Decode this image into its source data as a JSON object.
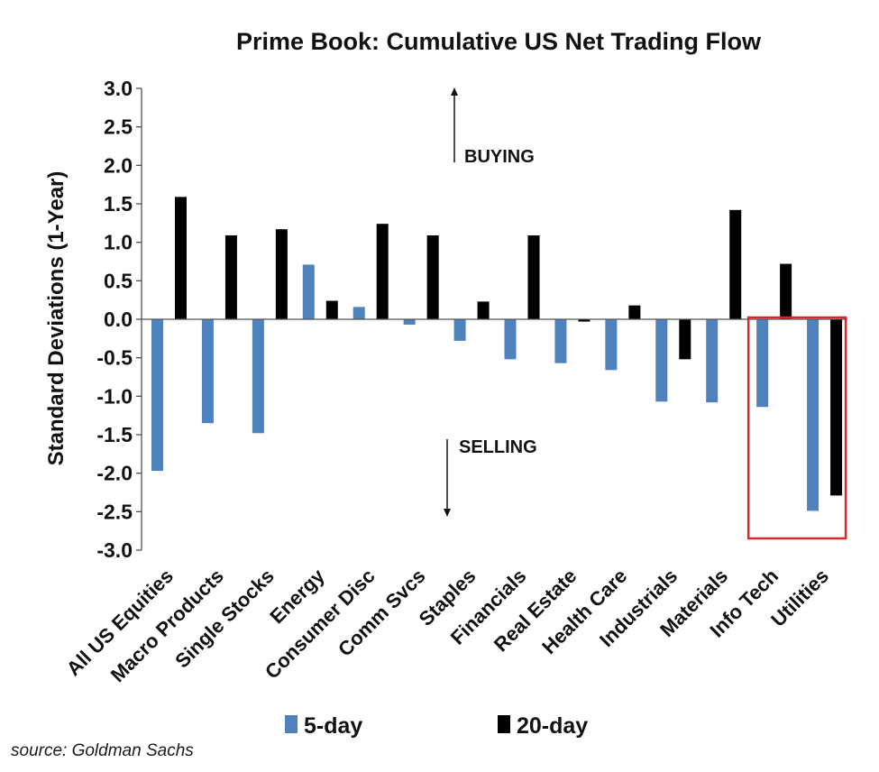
{
  "chart_data": {
    "type": "bar",
    "title": "Prime Book: Cumulative US Net Trading Flow",
    "ylabel": "Standard Deviations (1-Year)",
    "xlabel": "",
    "ylim": [
      -3.0,
      3.0
    ],
    "yticks": [
      "3.0",
      "2.5",
      "2.0",
      "1.5",
      "1.0",
      "0.5",
      "0.0",
      "-0.5",
      "-1.0",
      "-1.5",
      "-2.0",
      "-2.5",
      "-3.0"
    ],
    "categories": [
      "All US Equities",
      "Macro Products",
      "Single Stocks",
      "Energy",
      "Consumer Disc",
      "Comm Svcs",
      "Staples",
      "Financials",
      "Real Estate",
      "Health Care",
      "Industrials",
      "Materials",
      "Info Tech",
      "Utilities"
    ],
    "series": [
      {
        "name": "5-day",
        "color": "#4f81bd",
        "values": [
          -1.97,
          -1.35,
          -1.48,
          0.71,
          0.16,
          -0.07,
          -0.28,
          -0.52,
          -0.57,
          -0.66,
          -1.07,
          -1.08,
          -1.14,
          -2.49
        ]
      },
      {
        "name": "20-day",
        "color": "#000000",
        "values": [
          1.59,
          1.09,
          1.17,
          0.24,
          1.24,
          1.09,
          0.23,
          1.09,
          -0.03,
          0.18,
          -0.52,
          1.42,
          0.72,
          -2.29
        ]
      }
    ],
    "annotations": {
      "buying": "BUYING",
      "selling": "SELLING"
    },
    "highlight": {
      "categories": [
        "Info Tech",
        "Utilities"
      ],
      "color": "#d9262c"
    },
    "legend": "bottom",
    "grid": false
  },
  "source": "source: Goldman Sachs"
}
